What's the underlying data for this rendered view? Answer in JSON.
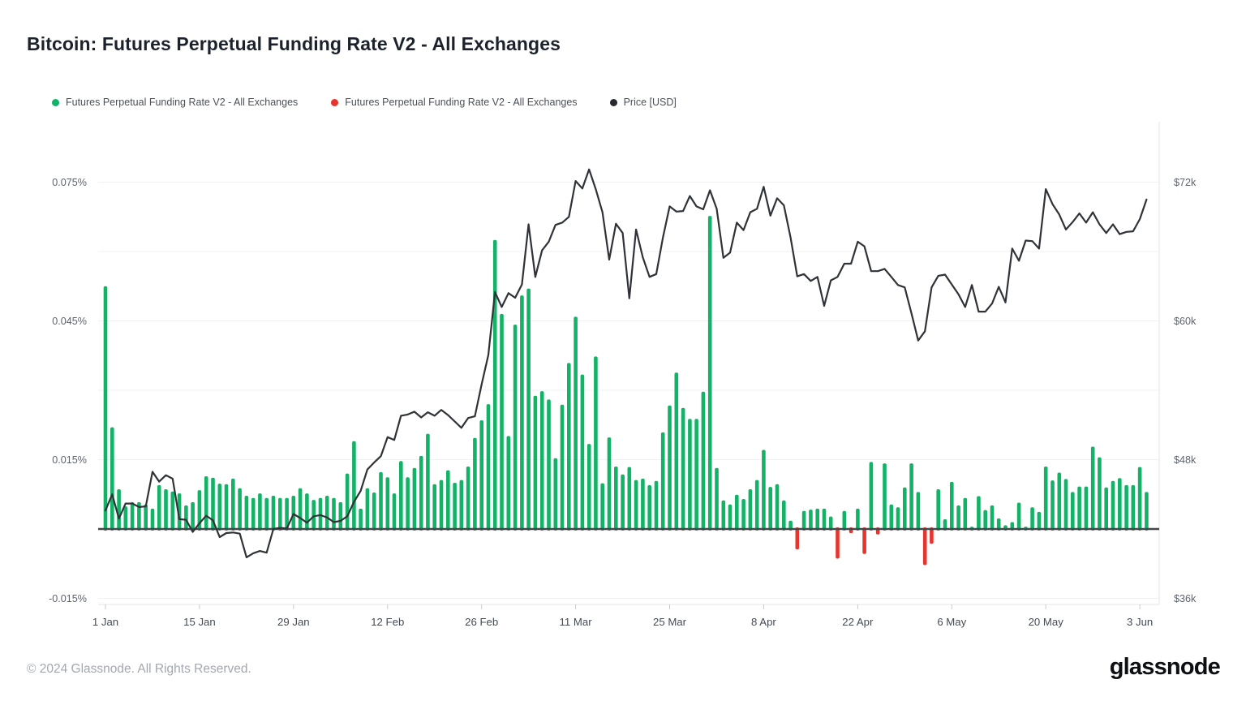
{
  "header": {
    "title": "Bitcoin: Futures Perpetual Funding Rate V2 - All Exchanges"
  },
  "legend": {
    "items": [
      {
        "label": "Futures Perpetual Funding Rate V2 - All Exchanges",
        "color": "#12b267"
      },
      {
        "label": "Futures Perpetual Funding Rate V2 - All Exchanges",
        "color": "#e7342d"
      },
      {
        "label": "Price [USD]",
        "color": "#26292e"
      }
    ]
  },
  "footer": {
    "copyright": "© 2024 Glassnode. All Rights Reserved.",
    "logo": "glassnode"
  },
  "chart_data": {
    "type": "combo",
    "start_date": "2024-01-01",
    "frequency": "daily",
    "x_axis": {
      "ticks": [
        {
          "label": "1 Jan",
          "day": 0
        },
        {
          "label": "15 Jan",
          "day": 14
        },
        {
          "label": "29 Jan",
          "day": 28
        },
        {
          "label": "12 Feb",
          "day": 42
        },
        {
          "label": "26 Feb",
          "day": 56
        },
        {
          "label": "11 Mar",
          "day": 70
        },
        {
          "label": "25 Mar",
          "day": 84
        },
        {
          "label": "8 Apr",
          "day": 98
        },
        {
          "label": "22 Apr",
          "day": 112
        },
        {
          "label": "6 May",
          "day": 126
        },
        {
          "label": "20 May",
          "day": 140
        },
        {
          "label": "3 Jun",
          "day": 154
        }
      ]
    },
    "left_axis": {
      "unit": "%",
      "ticks": [
        {
          "label": "0.075%",
          "value": 0.075
        },
        {
          "label": "0.045%",
          "value": 0.045
        },
        {
          "label": "0.015%",
          "value": 0.015
        },
        {
          "label": "-0.015%",
          "value": -0.015
        }
      ],
      "grid_values": [
        0.075,
        0.06,
        0.045,
        0.03,
        0.015,
        -0.015
      ],
      "zero_value": 0
    },
    "right_axis": {
      "unit": "USD",
      "ticks": [
        {
          "label": "$72k",
          "value": 72000
        },
        {
          "label": "$60k",
          "value": 60000
        },
        {
          "label": "$48k",
          "value": 48000
        },
        {
          "label": "$36k",
          "value": 36000
        }
      ]
    },
    "series": [
      {
        "name": "Futures Perpetual Funding Rate V2 - All Exchanges",
        "type": "bar",
        "unit": "%",
        "positive_color": "#12b267",
        "negative_color": "#e7342d",
        "values": [
          0.0525,
          0.022,
          0.0086,
          0.0049,
          0.0058,
          0.0058,
          0.0053,
          0.0044,
          0.0095,
          0.0086,
          0.0081,
          0.0077,
          0.0051,
          0.0058,
          0.0084,
          0.0114,
          0.0111,
          0.0098,
          0.0097,
          0.0109,
          0.0088,
          0.0072,
          0.0067,
          0.0077,
          0.0067,
          0.0072,
          0.0067,
          0.0067,
          0.0072,
          0.0088,
          0.0077,
          0.0063,
          0.0067,
          0.0072,
          0.0067,
          0.0058,
          0.012,
          0.019,
          0.0044,
          0.0088,
          0.0079,
          0.0123,
          0.0112,
          0.0077,
          0.0147,
          0.0112,
          0.0132,
          0.0158,
          0.0206,
          0.0097,
          0.0106,
          0.0127,
          0.01,
          0.0106,
          0.0135,
          0.0197,
          0.0235,
          0.027,
          0.0625,
          0.0465,
          0.0201,
          0.0442,
          0.0505,
          0.052,
          0.0288,
          0.0298,
          0.028,
          0.0153,
          0.0269,
          0.0359,
          0.0459,
          0.0334,
          0.0184,
          0.0373,
          0.0099,
          0.0198,
          0.0135,
          0.0118,
          0.0134,
          0.0106,
          0.0109,
          0.0095,
          0.0104,
          0.0209,
          0.0267,
          0.0338,
          0.0262,
          0.0238,
          0.0238,
          0.0297,
          0.0677,
          0.0132,
          0.0062,
          0.0053,
          0.0074,
          0.0065,
          0.0086,
          0.0106,
          0.0171,
          0.0091,
          0.0097,
          0.0062,
          0.0018,
          -0.0044,
          0.0039,
          0.0042,
          0.0044,
          0.0044,
          0.0027,
          -0.0064,
          0.0039,
          -0.0009,
          0.0044,
          -0.0054,
          0.0145,
          -0.0012,
          0.0142,
          0.0053,
          0.0047,
          0.009,
          0.0142,
          0.008,
          -0.0078,
          -0.0032,
          0.0086,
          0.0021,
          0.0102,
          0.0051,
          0.0067,
          0.0005,
          0.0071,
          0.0041,
          0.0051,
          0.0023,
          0.0008,
          0.0015,
          0.0057,
          0.0005,
          0.0047,
          0.0037,
          0.0135,
          0.0105,
          0.0122,
          0.0108,
          0.008,
          0.0092,
          0.0092,
          0.0178,
          0.0155,
          0.009,
          0.0104,
          0.011,
          0.0095,
          0.0095,
          0.0134,
          0.008
        ]
      },
      {
        "name": "Price [USD]",
        "type": "line",
        "unit": "USD",
        "color": "#2f3338",
        "values": [
          43600,
          45000,
          42900,
          44200,
          44200,
          43900,
          43950,
          46950,
          46100,
          46650,
          46350,
          42850,
          42800,
          41750,
          42500,
          43150,
          42750,
          41300,
          41650,
          41700,
          41600,
          39550,
          39900,
          40100,
          39950,
          42000,
          42100,
          42050,
          43300,
          42950,
          42550,
          43100,
          43200,
          43000,
          42600,
          42700,
          43100,
          44350,
          45300,
          47150,
          47750,
          48300,
          49950,
          49700,
          51800,
          51900,
          52150,
          51650,
          52100,
          51800,
          52300,
          51850,
          51300,
          50750,
          51600,
          51750,
          54500,
          57050,
          62500,
          61200,
          62400,
          62000,
          63150,
          68350,
          63800,
          66100,
          66850,
          68300,
          68500,
          69000,
          72100,
          71450,
          73100,
          71400,
          69400,
          65300,
          68400,
          67600,
          61950,
          67900,
          65500,
          63800,
          64050,
          67200,
          69900,
          69450,
          69500,
          70800,
          69900,
          69650,
          71300,
          69700,
          65450,
          65900,
          68500,
          67850,
          69400,
          69700,
          71600,
          69100,
          70600,
          70000,
          67200,
          63850,
          64050,
          63450,
          63800,
          61300,
          63500,
          63800,
          64950,
          64950,
          66850,
          66450,
          64300,
          64300,
          64500,
          63800,
          63100,
          62900,
          60650,
          58300,
          59100,
          62900,
          63900,
          64000,
          63150,
          62300,
          61200,
          63100,
          60800,
          60800,
          61500,
          62950,
          61600,
          66250,
          65200,
          66950,
          66900,
          66250,
          71400,
          70100,
          69200,
          67900,
          68550,
          69300,
          68500,
          69400,
          68350,
          67600,
          68350,
          67500,
          67700,
          67750,
          68800,
          70500
        ]
      }
    ]
  }
}
